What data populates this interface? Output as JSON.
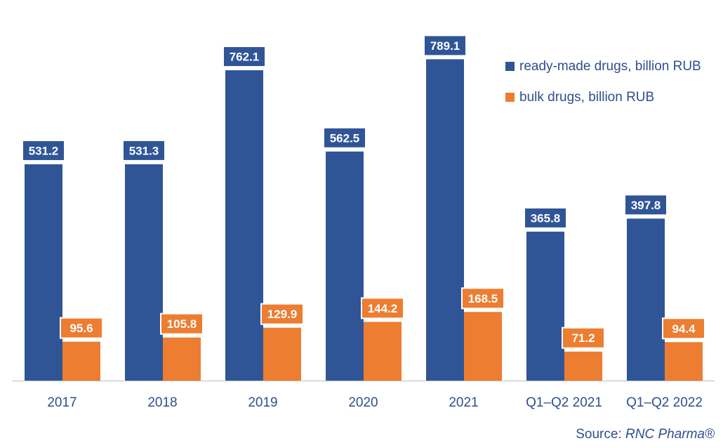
{
  "chart_data": {
    "type": "bar",
    "categories": [
      "2017",
      "2018",
      "2019",
      "2020",
      "2021",
      "Q1–Q2 2021",
      "Q1–Q2 2022"
    ],
    "series": [
      {
        "name": "ready-made drugs, billion RUB",
        "color": "#2f5597",
        "values": [
          531.2,
          531.3,
          762.1,
          562.5,
          789.1,
          365.8,
          397.8
        ],
        "labels": [
          "531.2",
          "531.3",
          "762.1",
          "562.5",
          "789.1",
          "365.8",
          "397.8"
        ]
      },
      {
        "name": "bulk drugs, billion RUB",
        "color": "#ed7d31",
        "values": [
          95.6,
          105.8,
          129.9,
          144.2,
          168.5,
          71.2,
          94.4
        ],
        "labels": [
          "95.6",
          "105.8",
          "129.9",
          "144.2",
          "168.5",
          "71.2",
          "94.4"
        ]
      }
    ],
    "ylim": [
      0,
      1000
    ],
    "grid": false,
    "legend": "top-right"
  },
  "source": {
    "prefix": "Source: ",
    "name": "RNC Pharma®"
  }
}
